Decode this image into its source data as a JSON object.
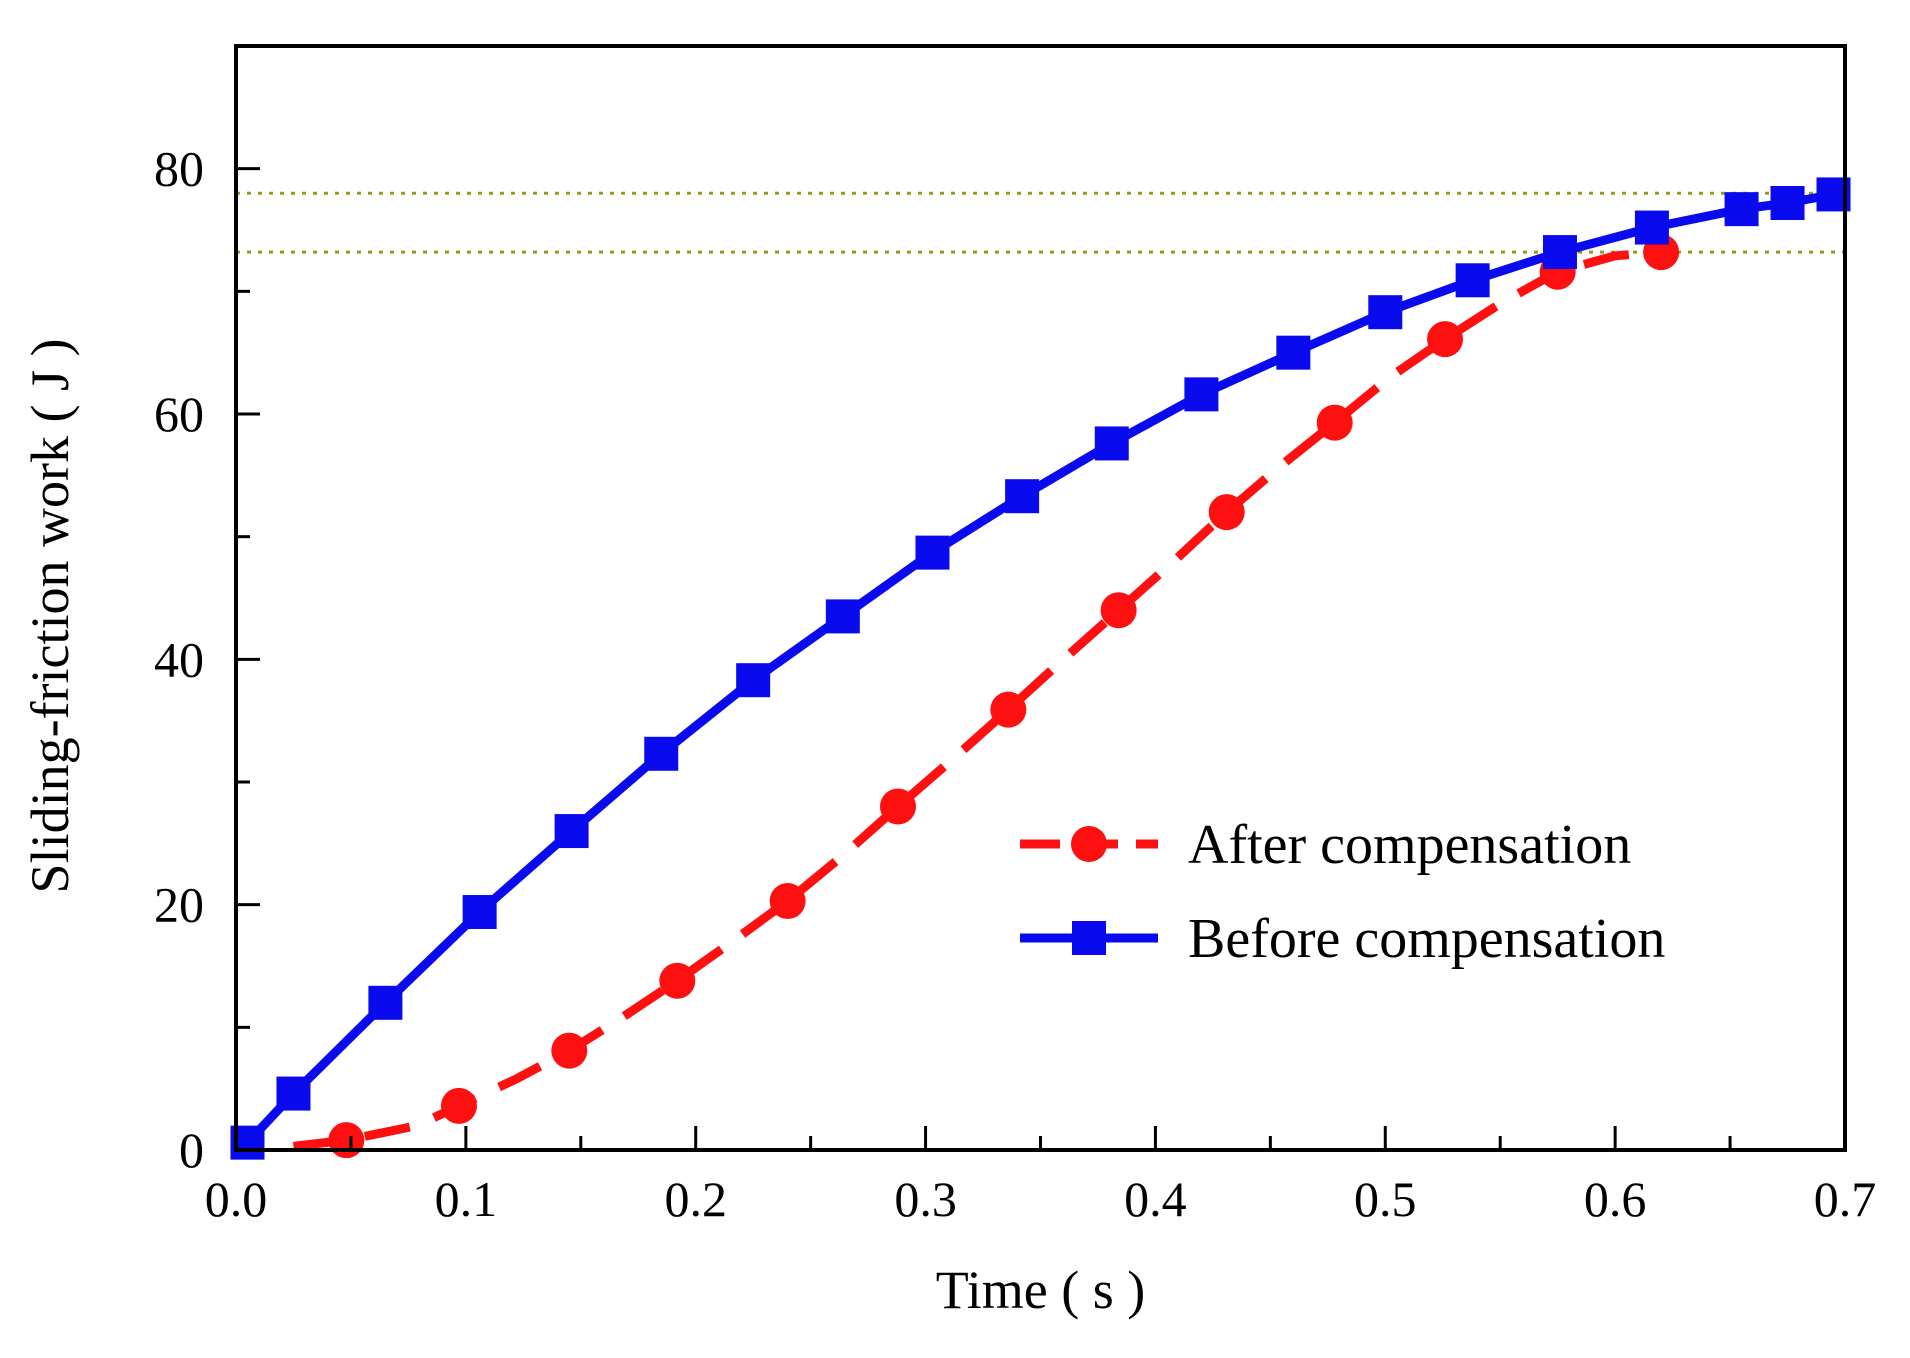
{
  "chart_data": {
    "type": "line",
    "title": "",
    "xlabel": "Time ( s )",
    "ylabel": "Sliding-friction work ( J )",
    "xlim": [
      0.0,
      0.7
    ],
    "ylim": [
      0,
      90
    ],
    "xticks": [
      0.0,
      0.1,
      0.2,
      0.3,
      0.4,
      0.5,
      0.6,
      0.7
    ],
    "xtick_labels": [
      "0.0",
      "0.1",
      "0.2",
      "0.3",
      "0.4",
      "0.5",
      "0.6",
      "0.7"
    ],
    "xminor": [
      0.05,
      0.15,
      0.25,
      0.35,
      0.45,
      0.55,
      0.65
    ],
    "yticks": [
      0,
      20,
      40,
      60,
      80
    ],
    "ytick_labels": [
      "0",
      "20",
      "40",
      "60",
      "80"
    ],
    "yminor": [
      10,
      30,
      50,
      70
    ],
    "grid": false,
    "legend_position": "center-right",
    "reference_lines": [
      {
        "y": 78.0,
        "style": "dotted",
        "color": "#9a9a1a"
      },
      {
        "y": 73.2,
        "style": "dotted",
        "color": "#9a9a1a"
      }
    ],
    "series": [
      {
        "name": "After compensation",
        "color": "#ff1010",
        "line_style": "dashed",
        "marker": "circle",
        "x": [
          0.025,
          0.048,
          0.079,
          0.097,
          0.122,
          0.145,
          0.168,
          0.192,
          0.216,
          0.24,
          0.264,
          0.288,
          0.312,
          0.336,
          0.36,
          0.384,
          0.408,
          0.431,
          0.454,
          0.478,
          0.502,
          0.526,
          0.55,
          0.575,
          0.6,
          0.62
        ],
        "y": [
          0.3,
          0.8,
          2.0,
          3.6,
          5.8,
          8.1,
          10.8,
          13.8,
          17.0,
          20.3,
          24.0,
          28.0,
          31.9,
          35.9,
          40.0,
          44.0,
          48.0,
          52.0,
          55.7,
          59.3,
          63.0,
          66.1,
          69.0,
          71.6,
          72.9,
          73.2
        ],
        "marker_x": [
          0.048,
          0.097,
          0.145,
          0.192,
          0.24,
          0.288,
          0.336,
          0.384,
          0.431,
          0.478,
          0.526,
          0.575,
          0.62
        ],
        "marker_y": [
          0.8,
          3.6,
          8.1,
          13.8,
          20.3,
          28.0,
          35.9,
          44.0,
          52.0,
          59.3,
          66.1,
          71.6,
          73.2
        ]
      },
      {
        "name": "Before compensation",
        "color": "#0a0aee",
        "line_style": "solid",
        "marker": "square",
        "x": [
          0.005,
          0.025,
          0.065,
          0.106,
          0.146,
          0.185,
          0.225,
          0.264,
          0.303,
          0.342,
          0.381,
          0.42,
          0.46,
          0.5,
          0.538,
          0.576,
          0.616,
          0.655,
          0.675,
          0.695
        ],
        "y": [
          0.6,
          4.6,
          12.0,
          19.4,
          26.0,
          32.3,
          38.3,
          43.5,
          48.7,
          53.3,
          57.6,
          61.6,
          65.0,
          68.3,
          70.9,
          73.2,
          75.2,
          76.7,
          77.2,
          77.9
        ]
      }
    ]
  }
}
